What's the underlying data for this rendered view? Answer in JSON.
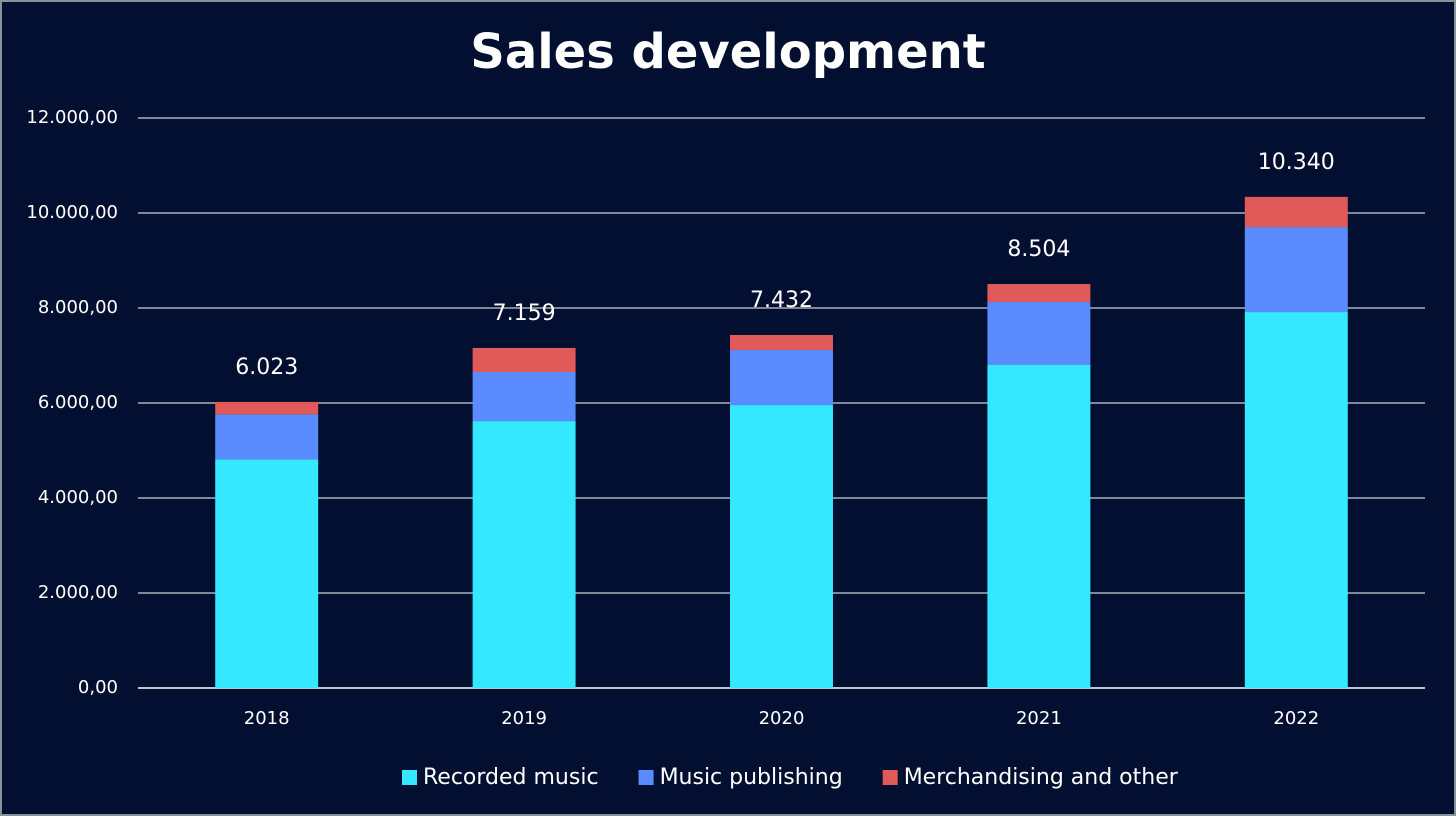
{
  "chart_data": {
    "type": "stacked_bar",
    "title": "Sales development",
    "categories": [
      "2018",
      "2019",
      "2020",
      "2021",
      "2022"
    ],
    "series": [
      {
        "name": "Recorded music",
        "color": "#33e8ff",
        "values": [
          4810,
          5620,
          5957,
          6800,
          7915
        ]
      },
      {
        "name": "Music publishing",
        "color": "#5b8cff",
        "values": [
          950,
          1032,
          1158,
          1325,
          1789
        ]
      },
      {
        "name": "Merchandising and other",
        "color": "#e05a5a",
        "values": [
          263,
          507,
          317,
          379,
          636
        ]
      }
    ],
    "totals": {
      "values": [
        6023,
        7159,
        7432,
        8504,
        10340
      ],
      "value_labels": [
        "6.023",
        "7.159",
        "7.432",
        "8.504",
        "10.340"
      ]
    },
    "ylim": [
      0,
      12000
    ],
    "yticks": [
      {
        "value": 0,
        "label": "0,00"
      },
      {
        "value": 2000,
        "label": "2.000,00"
      },
      {
        "value": 4000,
        "label": "4.000,00"
      },
      {
        "value": 6000,
        "label": "6.000,00"
      },
      {
        "value": 8000,
        "label": "8.000,00"
      },
      {
        "value": 10000,
        "label": "10.000,00"
      },
      {
        "value": 12000,
        "label": "12.000,00"
      }
    ],
    "grid": true,
    "legend": "bottom"
  }
}
